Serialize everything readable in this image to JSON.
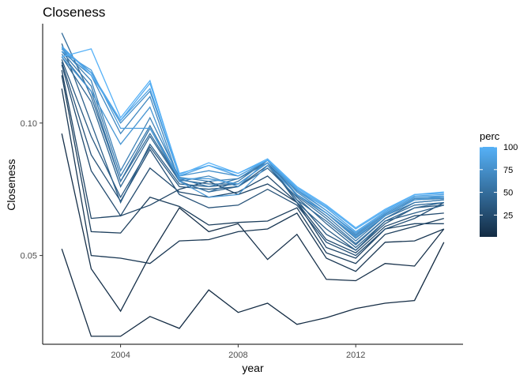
{
  "chart_data": {
    "type": "line",
    "title": "Closeness",
    "xlabel": "year",
    "ylabel": "Closeness",
    "x": [
      2002,
      2003,
      2004,
      2005,
      2006,
      2007,
      2008,
      2009,
      2010,
      2011,
      2012,
      2013,
      2014,
      2015
    ],
    "xlim": [
      2001.35,
      2015.65
    ],
    "ylim": [
      0.0165,
      0.1375
    ],
    "x_ticks": [
      2004,
      2008,
      2012
    ],
    "x_tick_labels": [
      "2004",
      "2008",
      "2012"
    ],
    "y_ticks": [
      0.05,
      0.1
    ],
    "y_tick_labels": [
      "0.05",
      "0.10"
    ],
    "grid": false,
    "legend": {
      "title": "perc",
      "placement": "right",
      "type": "colorbar",
      "low_color": "#132B43",
      "high_color": "#56B1F7",
      "range": [
        1,
        100
      ],
      "ticks": [
        25,
        50,
        75,
        100
      ],
      "tick_labels": [
        "25",
        "50",
        "75",
        "100"
      ]
    },
    "series": [
      {
        "perc": 1,
        "values": [
          0.0525,
          0.0195,
          0.0195,
          0.027,
          0.0225,
          0.037,
          0.0285,
          0.032,
          0.024,
          0.0265,
          0.03,
          0.032,
          0.033,
          0.055
        ]
      },
      {
        "perc": 5,
        "values": [
          0.096,
          0.045,
          0.029,
          0.05,
          0.068,
          0.059,
          0.062,
          0.0485,
          0.058,
          0.041,
          0.0405,
          0.047,
          0.046,
          0.06
        ]
      },
      {
        "perc": 10,
        "values": [
          0.113,
          0.05,
          0.049,
          0.047,
          0.0555,
          0.056,
          0.059,
          0.06,
          0.066,
          0.049,
          0.044,
          0.055,
          0.0555,
          0.06
        ]
      },
      {
        "perc": 15,
        "values": [
          0.118,
          0.059,
          0.0585,
          0.072,
          0.0685,
          0.0615,
          0.0625,
          0.063,
          0.068,
          0.051,
          0.047,
          0.058,
          0.061,
          0.064
        ]
      },
      {
        "perc": 20,
        "values": [
          0.12,
          0.064,
          0.065,
          0.069,
          0.075,
          0.078,
          0.073,
          0.077,
          0.07,
          0.053,
          0.049,
          0.06,
          0.062,
          0.062
        ]
      },
      {
        "perc": 25,
        "values": [
          0.122,
          0.082,
          0.065,
          0.083,
          0.074,
          0.072,
          0.074,
          0.08,
          0.07,
          0.056,
          0.051,
          0.061,
          0.065,
          0.066
        ]
      },
      {
        "perc": 30,
        "values": [
          0.123,
          0.088,
          0.0705,
          0.09,
          0.073,
          0.068,
          0.069,
          0.075,
          0.069,
          0.055,
          0.05,
          0.06,
          0.064,
          0.07
        ]
      },
      {
        "perc": 35,
        "values": [
          0.124,
          0.095,
          0.072,
          0.091,
          0.076,
          0.075,
          0.076,
          0.084,
          0.071,
          0.058,
          0.052,
          0.062,
          0.068,
          0.069
        ]
      },
      {
        "perc": 40,
        "values": [
          0.13,
          0.1,
          0.07,
          0.092,
          0.077,
          0.076,
          0.077,
          0.085,
          0.07,
          0.06,
          0.052,
          0.063,
          0.066,
          0.069
        ]
      },
      {
        "perc": 45,
        "values": [
          0.125,
          0.108,
          0.076,
          0.095,
          0.078,
          0.074,
          0.076,
          0.083,
          0.072,
          0.062,
          0.053,
          0.063,
          0.068,
          0.07
        ]
      },
      {
        "perc": 50,
        "values": [
          0.134,
          0.11,
          0.078,
          0.096,
          0.0785,
          0.077,
          0.077,
          0.085,
          0.071,
          0.063,
          0.054,
          0.064,
          0.069,
          0.07
        ]
      },
      {
        "perc": 55,
        "values": [
          0.126,
          0.112,
          0.078,
          0.098,
          0.078,
          0.074,
          0.078,
          0.086,
          0.0725,
          0.064,
          0.0545,
          0.064,
          0.07,
          0.071
        ]
      },
      {
        "perc": 60,
        "values": [
          0.127,
          0.114,
          0.08,
          0.099,
          0.079,
          0.076,
          0.079,
          0.085,
          0.073,
          0.065,
          0.0555,
          0.065,
          0.07,
          0.071
        ]
      },
      {
        "perc": 65,
        "values": [
          0.128,
          0.116,
          0.082,
          0.102,
          0.0795,
          0.078,
          0.079,
          0.086,
          0.073,
          0.066,
          0.0565,
          0.065,
          0.071,
          0.0715
        ]
      },
      {
        "perc": 70,
        "values": [
          0.127,
          0.118,
          0.096,
          0.11,
          0.078,
          0.08,
          0.076,
          0.086,
          0.074,
          0.066,
          0.0575,
          0.0655,
          0.0715,
          0.0715
        ]
      },
      {
        "perc": 75,
        "values": [
          0.1285,
          0.119,
          0.1,
          0.112,
          0.08,
          0.082,
          0.08,
          0.086,
          0.0745,
          0.067,
          0.058,
          0.066,
          0.072,
          0.072
        ]
      },
      {
        "perc": 80,
        "values": [
          0.125,
          0.112,
          0.092,
          0.106,
          0.078,
          0.072,
          0.073,
          0.084,
          0.073,
          0.066,
          0.057,
          0.065,
          0.071,
          0.072
        ]
      },
      {
        "perc": 85,
        "values": [
          0.127,
          0.12,
          0.098,
          0.098,
          0.079,
          0.079,
          0.077,
          0.085,
          0.075,
          0.067,
          0.0585,
          0.066,
          0.072,
          0.0725
        ]
      },
      {
        "perc": 90,
        "values": [
          0.128,
          0.119,
          0.101,
          0.113,
          0.08,
          0.084,
          0.08,
          0.086,
          0.075,
          0.068,
          0.059,
          0.0665,
          0.0725,
          0.073
        ]
      },
      {
        "perc": 95,
        "values": [
          0.129,
          0.118,
          0.101,
          0.115,
          0.081,
          0.084,
          0.081,
          0.086,
          0.0755,
          0.0685,
          0.06,
          0.067,
          0.073,
          0.0735
        ]
      },
      {
        "perc": 100,
        "values": [
          0.125,
          0.128,
          0.102,
          0.116,
          0.0805,
          0.085,
          0.081,
          0.0865,
          0.076,
          0.069,
          0.0605,
          0.0675,
          0.073,
          0.074
        ]
      }
    ]
  }
}
